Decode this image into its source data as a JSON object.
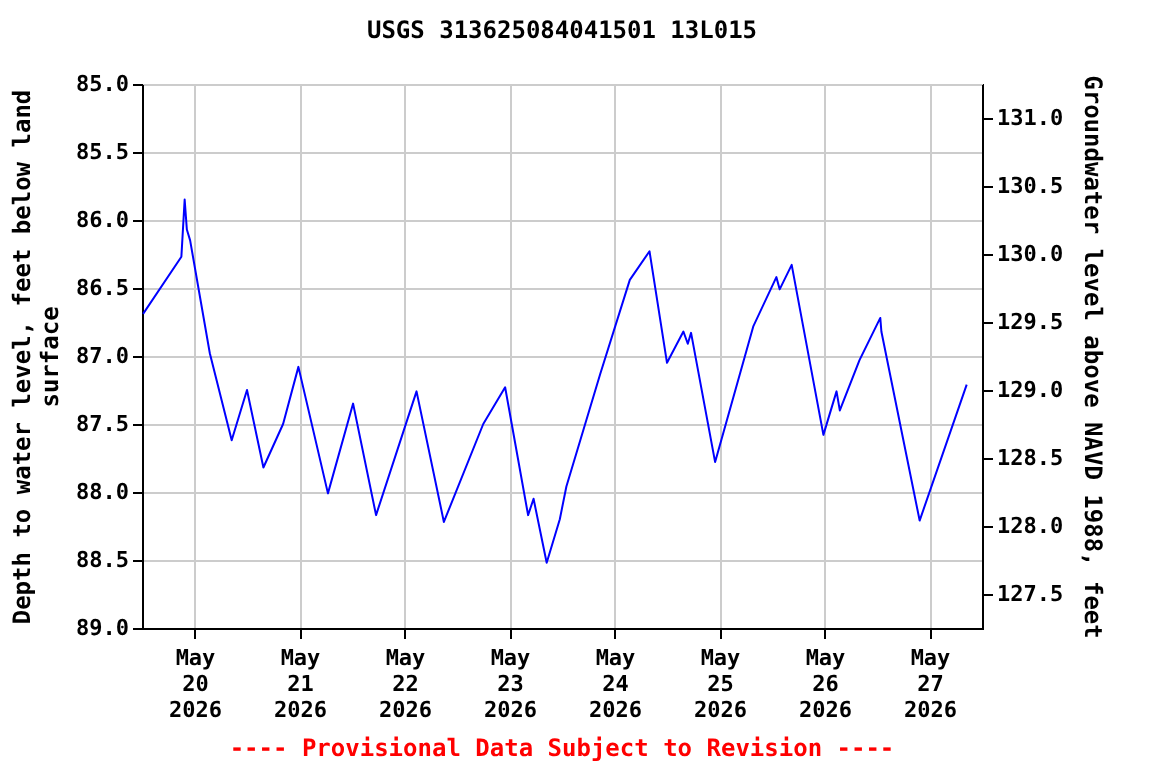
{
  "chart_data": {
    "type": "line",
    "title": "USGS 313625084041501 13L015",
    "ylabel": "Depth to water level, feet below land surface",
    "y2label": "Groundwater level above NAVD 1988, feet",
    "annotations": [
      "---- Provisional Data Subject to Revision ----"
    ],
    "x": [
      "2026-05-19T12:15",
      "2026-05-19T21:00",
      "2026-05-19T21:45",
      "2026-05-19T22:15",
      "2026-05-19T23:00",
      "2026-05-20T03:30",
      "2026-05-20T08:30",
      "2026-05-20T12:00",
      "2026-05-20T15:45",
      "2026-05-20T20:15",
      "2026-05-20T23:45",
      "2026-05-21T06:30",
      "2026-05-21T12:15",
      "2026-05-21T17:30",
      "2026-05-22T02:45",
      "2026-05-22T09:00",
      "2026-05-22T18:00",
      "2026-05-22T23:00",
      "2026-05-23T04:15",
      "2026-05-23T05:30",
      "2026-05-23T08:30",
      "2026-05-23T11:30",
      "2026-05-23T13:00",
      "2026-05-23T20:45",
      "2026-05-24T03:30",
      "2026-05-24T08:00",
      "2026-05-24T12:00",
      "2026-05-24T15:45",
      "2026-05-24T16:45",
      "2026-05-24T17:30",
      "2026-05-24T23:00",
      "2026-05-25T07:45",
      "2026-05-25T13:00",
      "2026-05-25T13:45",
      "2026-05-25T16:30",
      "2026-05-25T23:45",
      "2026-05-26T02:45",
      "2026-05-26T03:30",
      "2026-05-26T08:00",
      "2026-05-26T12:45",
      "2026-05-26T13:00",
      "2026-05-26T21:45",
      "2026-05-27T08:30"
    ],
    "series": [
      {
        "color": "#0000ff",
        "values": [
          86.69,
          86.27,
          85.85,
          86.07,
          86.15,
          86.98,
          87.62,
          87.25,
          87.82,
          87.5,
          87.08,
          88.01,
          87.35,
          88.17,
          87.26,
          88.22,
          87.5,
          87.23,
          88.17,
          88.05,
          88.52,
          88.2,
          87.96,
          87.13,
          86.44,
          86.23,
          87.05,
          86.82,
          86.91,
          86.83,
          87.78,
          86.78,
          86.42,
          86.51,
          86.33,
          87.58,
          87.26,
          87.4,
          87.03,
          86.72,
          86.82,
          88.21,
          87.21
        ]
      }
    ],
    "xlim": [
      "2026-05-19T12:00",
      "2026-05-27T12:00"
    ],
    "xticks": [
      {
        "value": "2026-05-20",
        "label": "May\n20\n2026"
      },
      {
        "value": "2026-05-21",
        "label": "May\n21\n2026"
      },
      {
        "value": "2026-05-22",
        "label": "May\n22\n2026"
      },
      {
        "value": "2026-05-23",
        "label": "May\n23\n2026"
      },
      {
        "value": "2026-05-24",
        "label": "May\n24\n2026"
      },
      {
        "value": "2026-05-25",
        "label": "May\n25\n2026"
      },
      {
        "value": "2026-05-26",
        "label": "May\n26\n2026"
      },
      {
        "value": "2026-05-27",
        "label": "May\n27\n2026"
      }
    ],
    "ylim": [
      89,
      85
    ],
    "yticks": [
      {
        "value": 85,
        "label": "85.0"
      },
      {
        "value": 85.5,
        "label": "85.5"
      },
      {
        "value": 86,
        "label": "86.0"
      },
      {
        "value": 86.5,
        "label": "86.5"
      },
      {
        "value": 87,
        "label": "87.0"
      },
      {
        "value": 87.5,
        "label": "87.5"
      },
      {
        "value": 88,
        "label": "88.0"
      },
      {
        "value": 88.5,
        "label": "88.5"
      },
      {
        "value": 89,
        "label": "89.0"
      }
    ],
    "y2lim": [
      127.25,
      131.25
    ],
    "y2ticks": [
      {
        "value": 127.5,
        "label": "127.5"
      },
      {
        "value": 128,
        "label": "128.0"
      },
      {
        "value": 128.5,
        "label": "128.5"
      },
      {
        "value": 129,
        "label": "129.0"
      },
      {
        "value": 129.5,
        "label": "129.5"
      },
      {
        "value": 130,
        "label": "130.0"
      },
      {
        "value": 130.5,
        "label": "130.5"
      },
      {
        "value": 131,
        "label": "131.0"
      }
    ],
    "grid": true
  }
}
